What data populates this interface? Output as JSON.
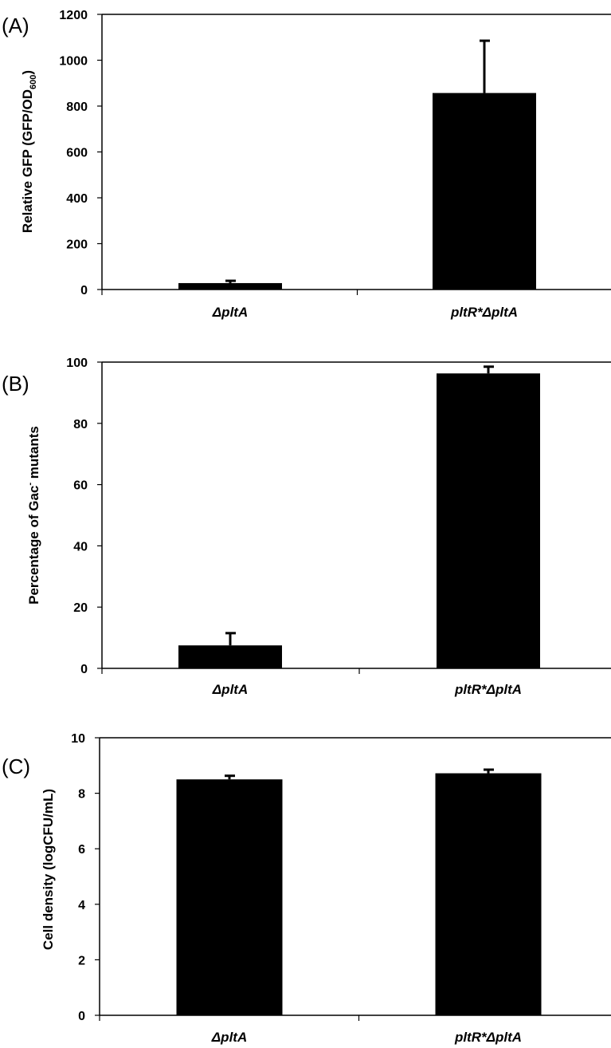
{
  "chart_data": [
    {
      "type": "bar",
      "panel_label": "(A)",
      "categories": [
        "ΔpltA",
        "pltR*ΔpltA"
      ],
      "values": [
        28,
        857
      ],
      "errors": [
        10,
        228
      ],
      "ylabel_main": "Relative GFP (GFP/OD",
      "ylabel_sub": "600",
      "ylabel_end": ")",
      "ylim": [
        0,
        1200
      ],
      "yticks": [
        "0",
        "200",
        "400",
        "600",
        "800",
        "1000",
        "1200"
      ]
    },
    {
      "type": "bar",
      "panel_label": "(B)",
      "categories": [
        "ΔpltA",
        "pltR*ΔpltA"
      ],
      "values": [
        7.5,
        96.3
      ],
      "errors": [
        4,
        2.2
      ],
      "ylabel_main": "Percentage of Gac",
      "ylabel_sup": "-",
      "ylabel_end": " mutants",
      "ylim": [
        0,
        100
      ],
      "yticks": [
        "0",
        "20",
        "40",
        "60",
        "80",
        "100"
      ]
    },
    {
      "type": "bar",
      "panel_label": "(C)",
      "categories": [
        "ΔpltA",
        "pltR*ΔpltA"
      ],
      "values": [
        8.5,
        8.72
      ],
      "errors": [
        0.13,
        0.13
      ],
      "ylabel_main": "Cell density (logCFU/mL)",
      "ylim": [
        0,
        10
      ],
      "yticks": [
        "0",
        "2",
        "4",
        "6",
        "8",
        "10"
      ]
    }
  ]
}
